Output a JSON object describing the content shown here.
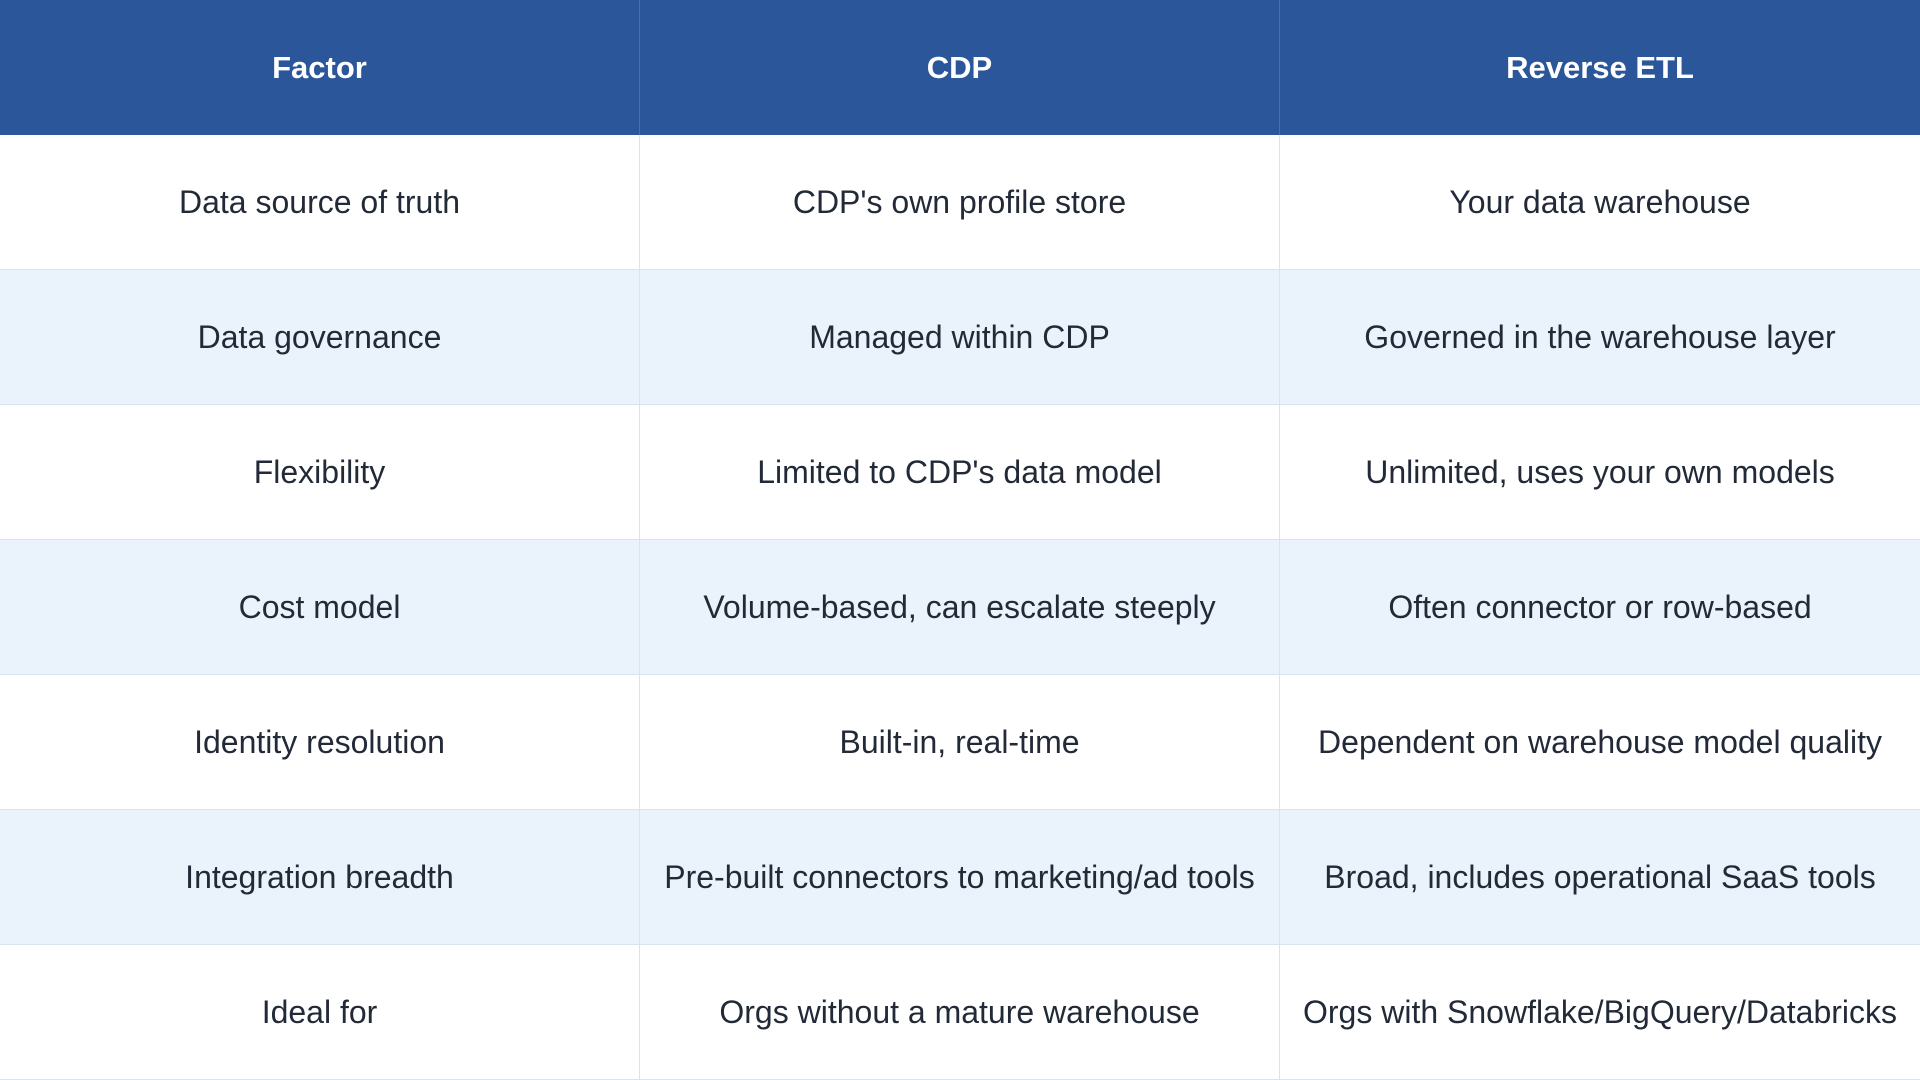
{
  "table": {
    "headers": [
      "Factor",
      "CDP",
      "Reverse ETL"
    ],
    "rows": [
      [
        "Data source of truth",
        "CDP's own profile store",
        "Your data warehouse"
      ],
      [
        "Data governance",
        "Managed within CDP",
        "Governed in the warehouse layer"
      ],
      [
        "Flexibility",
        "Limited to CDP's data model",
        "Unlimited, uses your own models"
      ],
      [
        "Cost model",
        "Volume-based, can escalate steeply",
        "Often connector or row-based"
      ],
      [
        "Identity resolution",
        "Built-in, real-time",
        "Dependent on warehouse model quality"
      ],
      [
        "Integration breadth",
        "Pre-built connectors to marketing/ad tools",
        "Broad, includes operational SaaS tools"
      ],
      [
        "Ideal for",
        "Orgs without a mature warehouse",
        "Orgs with Snowflake/BigQuery/Databricks"
      ]
    ]
  },
  "colors": {
    "header_bg": "#2b579a",
    "header_text": "#ffffff",
    "row_alt_bg": "#eaf2fb",
    "row_bg": "#ffffff",
    "text": "#222a38"
  }
}
